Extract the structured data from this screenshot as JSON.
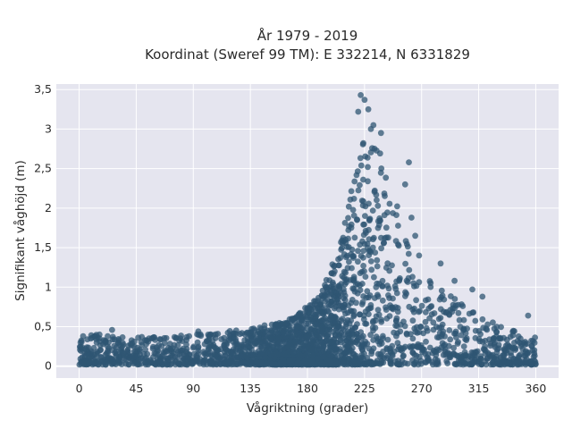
{
  "chart_data": {
    "type": "scatter",
    "title_lines": [
      "År 1979 - 2019",
      "Koordinat (Sweref 99 TM): E 332214, N 6331829"
    ],
    "xlabel": "Vågriktning (grader)",
    "ylabel": "Signifikant våghöjd (m)",
    "xlim": [
      -18,
      378
    ],
    "ylim": [
      -0.15,
      3.57
    ],
    "xticks": [
      0,
      45,
      90,
      135,
      180,
      225,
      270,
      315,
      360
    ],
    "xtick_labels": [
      "0",
      "45",
      "90",
      "135",
      "180",
      "225",
      "270",
      "315",
      "360"
    ],
    "yticks": [
      0,
      0.5,
      1,
      1.5,
      2,
      2.5,
      3,
      3.5
    ],
    "ytick_labels": [
      "0",
      "0,5",
      "1",
      "1,5",
      "2",
      "2,5",
      "3",
      "3,5"
    ],
    "grid": true,
    "marker_color": "#2f5673",
    "background_color": "#e5e5ef",
    "series": [
      {
        "envelope": [
          {
            "direction": 0,
            "upper_height": 0.4
          },
          {
            "direction": 45,
            "upper_height": 0.35
          },
          {
            "direction": 90,
            "upper_height": 0.38
          },
          {
            "direction": 135,
            "upper_height": 0.45
          },
          {
            "direction": 170,
            "upper_height": 0.6
          },
          {
            "direction": 190,
            "upper_height": 0.9
          },
          {
            "direction": 205,
            "upper_height": 1.5
          },
          {
            "direction": 215,
            "upper_height": 2.3
          },
          {
            "direction": 225,
            "upper_height": 3.0
          },
          {
            "direction": 235,
            "upper_height": 2.9
          },
          {
            "direction": 245,
            "upper_height": 2.4
          },
          {
            "direction": 260,
            "upper_height": 1.5
          },
          {
            "direction": 280,
            "upper_height": 1.0
          },
          {
            "direction": 300,
            "upper_height": 0.8
          },
          {
            "direction": 330,
            "upper_height": 0.5
          },
          {
            "direction": 360,
            "upper_height": 0.35
          }
        ],
        "outliers": [
          {
            "direction": 222,
            "height": 3.43
          },
          {
            "direction": 225,
            "height": 3.37
          },
          {
            "direction": 228,
            "height": 3.25
          },
          {
            "direction": 220,
            "height": 3.22
          },
          {
            "direction": 232,
            "height": 3.05
          },
          {
            "direction": 230,
            "height": 3.0
          },
          {
            "direction": 238,
            "height": 2.95
          },
          {
            "direction": 260,
            "height": 2.58
          },
          {
            "direction": 257,
            "height": 2.3
          },
          {
            "direction": 262,
            "height": 1.88
          },
          {
            "direction": 265,
            "height": 1.65
          },
          {
            "direction": 268,
            "height": 1.4
          },
          {
            "direction": 285,
            "height": 1.3
          },
          {
            "direction": 296,
            "height": 1.08
          },
          {
            "direction": 310,
            "height": 0.97
          },
          {
            "direction": 318,
            "height": 0.88
          },
          {
            "direction": 354,
            "height": 0.64
          },
          {
            "direction": 26,
            "height": 0.46
          },
          {
            "direction": 94,
            "height": 0.44
          },
          {
            "direction": 136,
            "height": 0.47
          }
        ]
      }
    ]
  }
}
